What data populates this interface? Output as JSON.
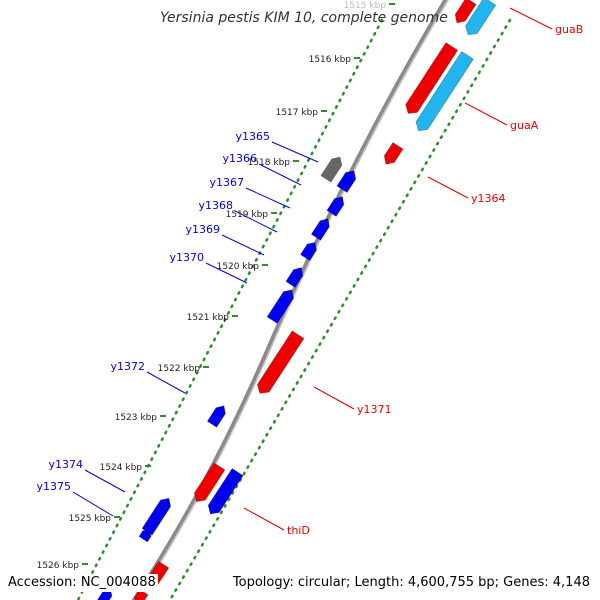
{
  "title": "Yersinia pestis KIM 10, complete genome",
  "accession": "Accession: NC_004088",
  "summary": "Topology: circular; Length: 4,600,755 bp; Genes: 4,148",
  "colors": {
    "backbone": "#8a8a8a",
    "tick": "#2e8b2e",
    "forward": "#0000ee",
    "reverse": "#ee0000",
    "other": "#666666",
    "cyan": "#22b4ee"
  },
  "kbp_labels": [
    "1515 kbp",
    "1516 kbp",
    "1517 kbp",
    "1518 kbp",
    "1519 kbp",
    "1520 kbp",
    "1521 kbp",
    "1522 kbp",
    "1523 kbp",
    "1524 kbp",
    "1525 kbp",
    "1526 kbp"
  ],
  "genes": [
    {
      "name": "y1365",
      "strand": "forward",
      "label_side": "left"
    },
    {
      "name": "y1366",
      "strand": "forward",
      "label_side": "left"
    },
    {
      "name": "y1367",
      "strand": "forward",
      "label_side": "left"
    },
    {
      "name": "y1368",
      "strand": "forward",
      "label_side": "left"
    },
    {
      "name": "y1369",
      "strand": "forward",
      "label_side": "left"
    },
    {
      "name": "y1370",
      "strand": "forward",
      "label_side": "left"
    },
    {
      "name": "y1372",
      "strand": "forward",
      "label_side": "left"
    },
    {
      "name": "y1374",
      "strand": "forward",
      "label_side": "left"
    },
    {
      "name": "y1375",
      "strand": "forward",
      "label_side": "left"
    },
    {
      "name": "guaB",
      "strand": "reverse",
      "label_side": "right"
    },
    {
      "name": "guaA",
      "strand": "reverse",
      "label_side": "right"
    },
    {
      "name": "y1364",
      "strand": "reverse",
      "label_side": "right"
    },
    {
      "name": "y1371",
      "strand": "reverse",
      "label_side": "right"
    },
    {
      "name": "thiD",
      "strand": "reverse",
      "label_side": "right"
    }
  ]
}
